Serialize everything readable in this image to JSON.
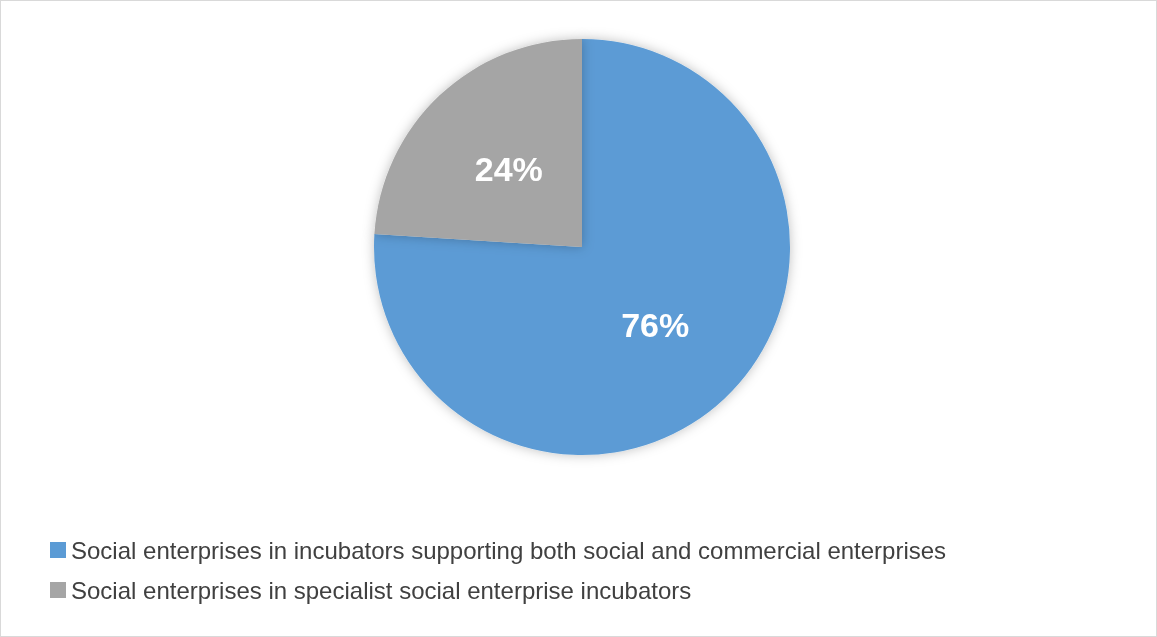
{
  "chart_data": {
    "type": "pie",
    "categories": [
      "Social enterprises in incubators supporting both social and commercial enterprises",
      "Social enterprises in specialist social enterprise incubators"
    ],
    "values": [
      76,
      24
    ],
    "colors": [
      "#5b9bd5",
      "#a5a5a5"
    ],
    "value_labels": [
      "76%",
      "24%"
    ],
    "legend": "bottom"
  }
}
